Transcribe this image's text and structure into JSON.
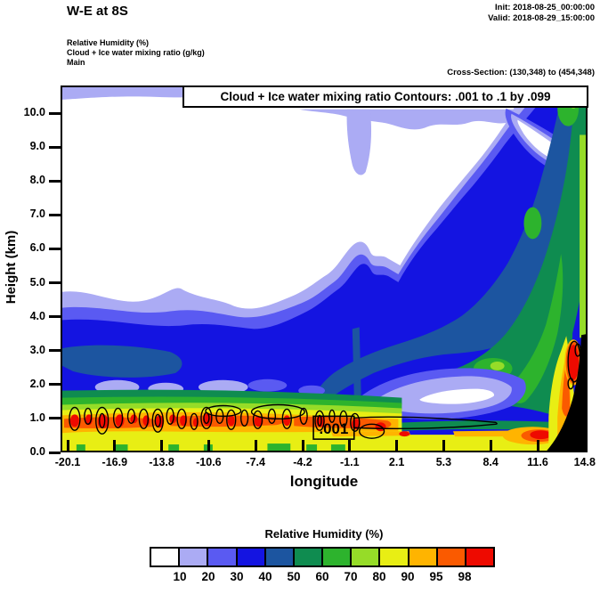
{
  "header": {
    "title": "W-E at 8S",
    "init_label": "Init: 2018-08-25_00:00:00",
    "valid_label": "Valid: 2018-08-29_15:00:00",
    "field_lines": [
      "Relative Humidity  (%)",
      "Cloud + Ice water mixing ratio  (g/kg)",
      "Main"
    ],
    "cross_section": "Cross-Section: (130,348) to (454,348)"
  },
  "chart_data": {
    "type": "heatmap",
    "title": "Cloud + Ice water mixing ratio Contours: .001 to .1 by .099",
    "xlabel": "longitude",
    "ylabel": "Height (km)",
    "x_tick_labels": [
      "-20.1",
      "-16.9",
      "-13.8",
      "-10.6",
      "-7.4",
      "-4.2",
      "-1.1",
      "2.1",
      "5.3",
      "8.4",
      "11.6",
      "14.8"
    ],
    "y_tick_labels": [
      "0.0",
      "1.0",
      "2.0",
      "3.0",
      "4.0",
      "5.0",
      "6.0",
      "7.0",
      "8.0",
      "9.0",
      "10.0"
    ],
    "ylim": [
      0,
      10.8
    ],
    "xlim": [
      -20.1,
      14.8
    ],
    "grid": false,
    "fill_field": "Relative Humidity (%)",
    "fill_levels": [
      10,
      20,
      30,
      40,
      50,
      60,
      70,
      80,
      90,
      95,
      98
    ],
    "fill_colors": [
      "#FFFFFF",
      "#ABABF4",
      "#5A5AF2",
      "#1414E1",
      "#1C55A0",
      "#0F8C50",
      "#2DB32D",
      "#96DC28",
      "#E8EE14",
      "#FFB400",
      "#FA5A00",
      "#EE0A00"
    ],
    "contour_field": "Cloud + Ice water mixing ratio (g/kg)",
    "contour_levels": [
      0.001,
      0.1
    ],
    "contour_interval": 0.099,
    "contour_label_text": ".001",
    "features": [
      {
        "name": "moist-boundary-layer-west",
        "desc": "RH 80-98% band near 0.5-1.5 km from -20.1 to about -2, with embedded cloud cells outlined by the .001 g/kg contour"
      },
      {
        "name": "dry-upper-west",
        "desc": "RH below 10% (white) above ~3 km over the western half, thin 10-20% strip along plot top"
      },
      {
        "name": "sloping-moist-layer-east",
        "desc": "Deep moist layer (RH 40-80%) sloping upward to the east, reaching above 10 km near 14.8"
      },
      {
        "name": "dry-slot-midlevels",
        "desc": "Local RH minimum (<10-20%) near 1-2 km between about 0 and 8 longitude"
      },
      {
        "name": "surface-humidity-max-east",
        "desc": "RH 90-98% near the surface around 10-14 longitude and on the eastern slope near 2-3 km"
      },
      {
        "name": "terrain-mask-east",
        "desc": "Black terrain fill at the eastern edge below about 3.3 km"
      }
    ]
  },
  "colorbar": {
    "title": "Relative Humidity  (%)",
    "labels": [
      "10",
      "20",
      "30",
      "40",
      "50",
      "60",
      "70",
      "80",
      "90",
      "95",
      "98"
    ],
    "colors": [
      "#FFFFFF",
      "#ABABF4",
      "#5A5AF2",
      "#1414E1",
      "#1C55A0",
      "#0F8C50",
      "#2DB32D",
      "#96DC28",
      "#E8EE14",
      "#FFB400",
      "#FA5A00",
      "#EE0A00"
    ]
  }
}
